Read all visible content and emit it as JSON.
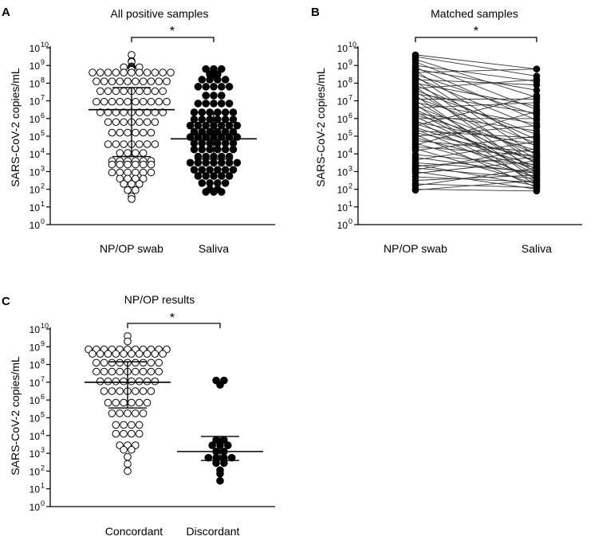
{
  "figure": {
    "panels": [
      {
        "letter": "A",
        "title": "All positive samples",
        "ylabel": "SARS-CoV-2 copies/mL",
        "categories": [
          "NP/OP swab",
          "Saliva"
        ],
        "significance": "*"
      },
      {
        "letter": "B",
        "title": "Matched samples",
        "ylabel": "SARS-CoV-2 copies/mL",
        "categories": [
          "NP/OP swab",
          "Saliva"
        ],
        "significance": "*"
      },
      {
        "letter": "C",
        "title": "NP/OP results",
        "ylabel": "SARS-CoV-2 copies/mL",
        "categories": [
          "Concordant",
          "Discordant"
        ],
        "significance": "*"
      }
    ],
    "y_ticks": [
      {
        "base": "10",
        "exp": "10"
      },
      {
        "base": "10",
        "exp": "9"
      },
      {
        "base": "10",
        "exp": "8"
      },
      {
        "base": "10",
        "exp": "7"
      },
      {
        "base": "10",
        "exp": "6"
      },
      {
        "base": "10",
        "exp": "5"
      },
      {
        "base": "10",
        "exp": "4"
      },
      {
        "base": "10",
        "exp": "3"
      },
      {
        "base": "10",
        "exp": "2"
      },
      {
        "base": "10",
        "exp": "1"
      },
      {
        "base": "10",
        "exp": "0"
      }
    ]
  },
  "chart_data": [
    {
      "type": "scatter",
      "subtype": "dot-plot",
      "title": "All positive samples",
      "ylabel": "SARS-CoV-2 copies/mL",
      "yscale": "log10",
      "ylim_log10": [
        0,
        10
      ],
      "categories": [
        "NP/OP swab",
        "Saliva"
      ],
      "significance": "*",
      "series": [
        {
          "name": "NP/OP swab",
          "marker": "open-circle",
          "summary_log10": {
            "median": 6.5,
            "q1": 3.85,
            "q3": 7.75
          },
          "values_log10": [
            9.6,
            9.25,
            9.2,
            8.95,
            8.9,
            8.85,
            8.9,
            8.8,
            8.75,
            8.9,
            8.6,
            8.6,
            8.6,
            8.6,
            8.6,
            8.6,
            8.6,
            8.6,
            8.6,
            8.6,
            8.6,
            8.1,
            8.1,
            8.1,
            8.1,
            8.1,
            8.1,
            8.1,
            8.1,
            8.1,
            8.1,
            7.55,
            7.55,
            7.55,
            7.55,
            7.55,
            7.55,
            7.55,
            7.55,
            7.55,
            6.95,
            6.95,
            6.95,
            6.95,
            6.95,
            6.95,
            6.95,
            6.95,
            6.95,
            6.95,
            6.35,
            6.35,
            6.35,
            6.35,
            6.35,
            6.35,
            6.35,
            6.35,
            6.35,
            5.8,
            5.8,
            5.8,
            5.8,
            5.8,
            5.8,
            5.8,
            5.2,
            5.2,
            5.2,
            5.2,
            5.2,
            5.2,
            4.55,
            4.55,
            4.55,
            4.55,
            4.55,
            4.55,
            4.55,
            4.05,
            4.05,
            4.05,
            4.05,
            3.6,
            3.6,
            3.6,
            3.6,
            3.6,
            3.6,
            3.4,
            3.4,
            3.4,
            3.4,
            3.4,
            3.4,
            2.95,
            2.95,
            2.95,
            2.95,
            2.95,
            2.95,
            2.6,
            2.6,
            2.6,
            2.6,
            2.3,
            2.3,
            2.3,
            1.95,
            1.95,
            1.6,
            1.45
          ]
        },
        {
          "name": "Saliva",
          "marker": "filled-circle",
          "summary_log10": {
            "median": 4.85,
            "q1": 3.7,
            "q3": 6.35
          },
          "values_log10": [
            8.8,
            8.8,
            8.8,
            8.5,
            8.5,
            8.45,
            8.2,
            8.2,
            8.2,
            8.2,
            7.8,
            7.8,
            7.8,
            7.8,
            7.8,
            7.3,
            7.3,
            7.3,
            6.85,
            6.85,
            6.85,
            6.85,
            6.85,
            6.35,
            6.35,
            6.35,
            6.35,
            6.35,
            6.35,
            5.95,
            5.95,
            5.95,
            5.95,
            5.95,
            5.95,
            5.6,
            5.6,
            5.6,
            5.6,
            5.6,
            5.6,
            5.6,
            5.25,
            5.25,
            5.25,
            5.25,
            5.25,
            5.25,
            4.95,
            4.95,
            4.95,
            4.95,
            4.95,
            4.95,
            4.95,
            4.6,
            4.6,
            4.6,
            4.6,
            4.6,
            4.6,
            4.25,
            4.25,
            4.25,
            4.25,
            4.25,
            4.25,
            3.85,
            3.85,
            3.85,
            3.85,
            3.85,
            3.5,
            3.5,
            3.5,
            3.5,
            3.5,
            3.5,
            3.5,
            3.1,
            3.1,
            3.1,
            3.1,
            3.1,
            3.1,
            2.75,
            2.75,
            2.75,
            2.75,
            2.75,
            2.35,
            2.35,
            2.35,
            2.35,
            2.0,
            2.0,
            1.85,
            1.85,
            1.85
          ]
        }
      ]
    },
    {
      "type": "line",
      "subtype": "paired-before-after",
      "title": "Matched samples",
      "ylabel": "SARS-CoV-2 copies/mL",
      "yscale": "log10",
      "ylim_log10": [
        0,
        10
      ],
      "categories": [
        "NP/OP swab",
        "Saliva"
      ],
      "significance": "*",
      "pairs_log10": [
        [
          9.6,
          8.8
        ],
        [
          9.5,
          8.4
        ],
        [
          9.35,
          7.2
        ],
        [
          9.2,
          6.5
        ],
        [
          9.0,
          8.1
        ],
        [
          8.9,
          5.9
        ],
        [
          8.8,
          7.6
        ],
        [
          8.7,
          4.4
        ],
        [
          8.6,
          8.8
        ],
        [
          8.5,
          6.2
        ],
        [
          8.4,
          3.9
        ],
        [
          8.3,
          5.5
        ],
        [
          8.2,
          7.9
        ],
        [
          8.1,
          3.4
        ],
        [
          8.0,
          6.7
        ],
        [
          7.9,
          4.8
        ],
        [
          7.8,
          2.9
        ],
        [
          7.7,
          8.2
        ],
        [
          7.6,
          5.1
        ],
        [
          7.5,
          3.7
        ],
        [
          7.4,
          6.3
        ],
        [
          7.3,
          2.5
        ],
        [
          7.2,
          4.6
        ],
        [
          7.1,
          7.1
        ],
        [
          7.0,
          3.1
        ],
        [
          6.9,
          5.7
        ],
        [
          6.8,
          2.2
        ],
        [
          6.7,
          4.0
        ],
        [
          6.6,
          6.9
        ],
        [
          6.5,
          3.5
        ],
        [
          6.4,
          2.8
        ],
        [
          6.3,
          5.3
        ],
        [
          6.2,
          4.2
        ],
        [
          6.1,
          3.0
        ],
        [
          6.0,
          6.0
        ],
        [
          5.9,
          2.4
        ],
        [
          5.8,
          4.5
        ],
        [
          5.7,
          3.6
        ],
        [
          5.6,
          7.3
        ],
        [
          5.5,
          3.3
        ],
        [
          5.4,
          2.6
        ],
        [
          5.3,
          4.9
        ],
        [
          5.2,
          3.8
        ],
        [
          5.1,
          2.1
        ],
        [
          5.0,
          5.6
        ],
        [
          4.9,
          3.2
        ],
        [
          4.75,
          4.1
        ],
        [
          4.6,
          2.7
        ],
        [
          4.5,
          6.4
        ],
        [
          4.4,
          3.9
        ],
        [
          4.3,
          2.3
        ],
        [
          4.2,
          5.0
        ],
        [
          3.95,
          3.4
        ],
        [
          3.8,
          2.9
        ],
        [
          3.65,
          4.7
        ],
        [
          3.5,
          3.0
        ],
        [
          3.4,
          2.2
        ],
        [
          3.3,
          3.8
        ],
        [
          3.2,
          2.6
        ],
        [
          3.1,
          4.3
        ],
        [
          3.0,
          2.0
        ],
        [
          2.9,
          3.6
        ],
        [
          2.7,
          2.4
        ],
        [
          2.5,
          2.8
        ],
        [
          2.3,
          2.1
        ],
        [
          2.2,
          3.2
        ],
        [
          2.0,
          1.9
        ],
        [
          1.95,
          2.5
        ]
      ]
    },
    {
      "type": "scatter",
      "subtype": "dot-plot",
      "title": "NP/OP results",
      "ylabel": "SARS-CoV-2 copies/mL",
      "yscale": "log10",
      "ylim_log10": [
        0,
        10
      ],
      "categories": [
        "Concordant",
        "Discordant"
      ],
      "significance": "*",
      "series": [
        {
          "name": "Concordant",
          "marker": "open-circle",
          "summary_log10": {
            "median": 7.0,
            "q1": 5.55,
            "q3": 8.15
          },
          "values_log10": [
            9.6,
            9.3,
            8.85,
            8.85,
            8.85,
            8.85,
            8.85,
            8.85,
            8.85,
            8.85,
            8.85,
            8.85,
            8.85,
            8.6,
            8.6,
            8.6,
            8.6,
            8.6,
            8.6,
            8.6,
            8.6,
            8.6,
            8.6,
            8.1,
            8.1,
            8.1,
            8.1,
            8.1,
            8.1,
            8.1,
            8.1,
            8.1,
            7.6,
            7.6,
            7.6,
            7.6,
            7.6,
            7.6,
            7.6,
            7.6,
            7.6,
            7.05,
            7.05,
            7.05,
            7.05,
            7.05,
            7.05,
            7.05,
            7.05,
            6.5,
            6.5,
            6.5,
            6.5,
            6.5,
            6.5,
            6.5,
            5.85,
            5.85,
            5.85,
            5.85,
            5.85,
            5.85,
            5.25,
            5.25,
            5.25,
            5.25,
            5.25,
            4.6,
            4.6,
            4.6,
            4.6,
            4.1,
            4.1,
            4.1,
            4.1,
            3.45,
            3.45,
            3.45,
            3.2,
            3.2,
            2.8,
            2.4,
            2.0
          ]
        },
        {
          "name": "Discordant",
          "marker": "filled-circle",
          "summary_log10": {
            "median": 3.1,
            "q1": 2.6,
            "q3": 3.95
          },
          "values_log10": [
            7.1,
            7.1,
            6.85,
            3.75,
            3.75,
            3.45,
            3.45,
            3.45,
            3.1,
            3.1,
            2.75,
            2.75,
            2.75,
            2.75,
            2.45,
            2.45,
            2.05,
            1.85,
            1.45
          ]
        }
      ]
    }
  ]
}
